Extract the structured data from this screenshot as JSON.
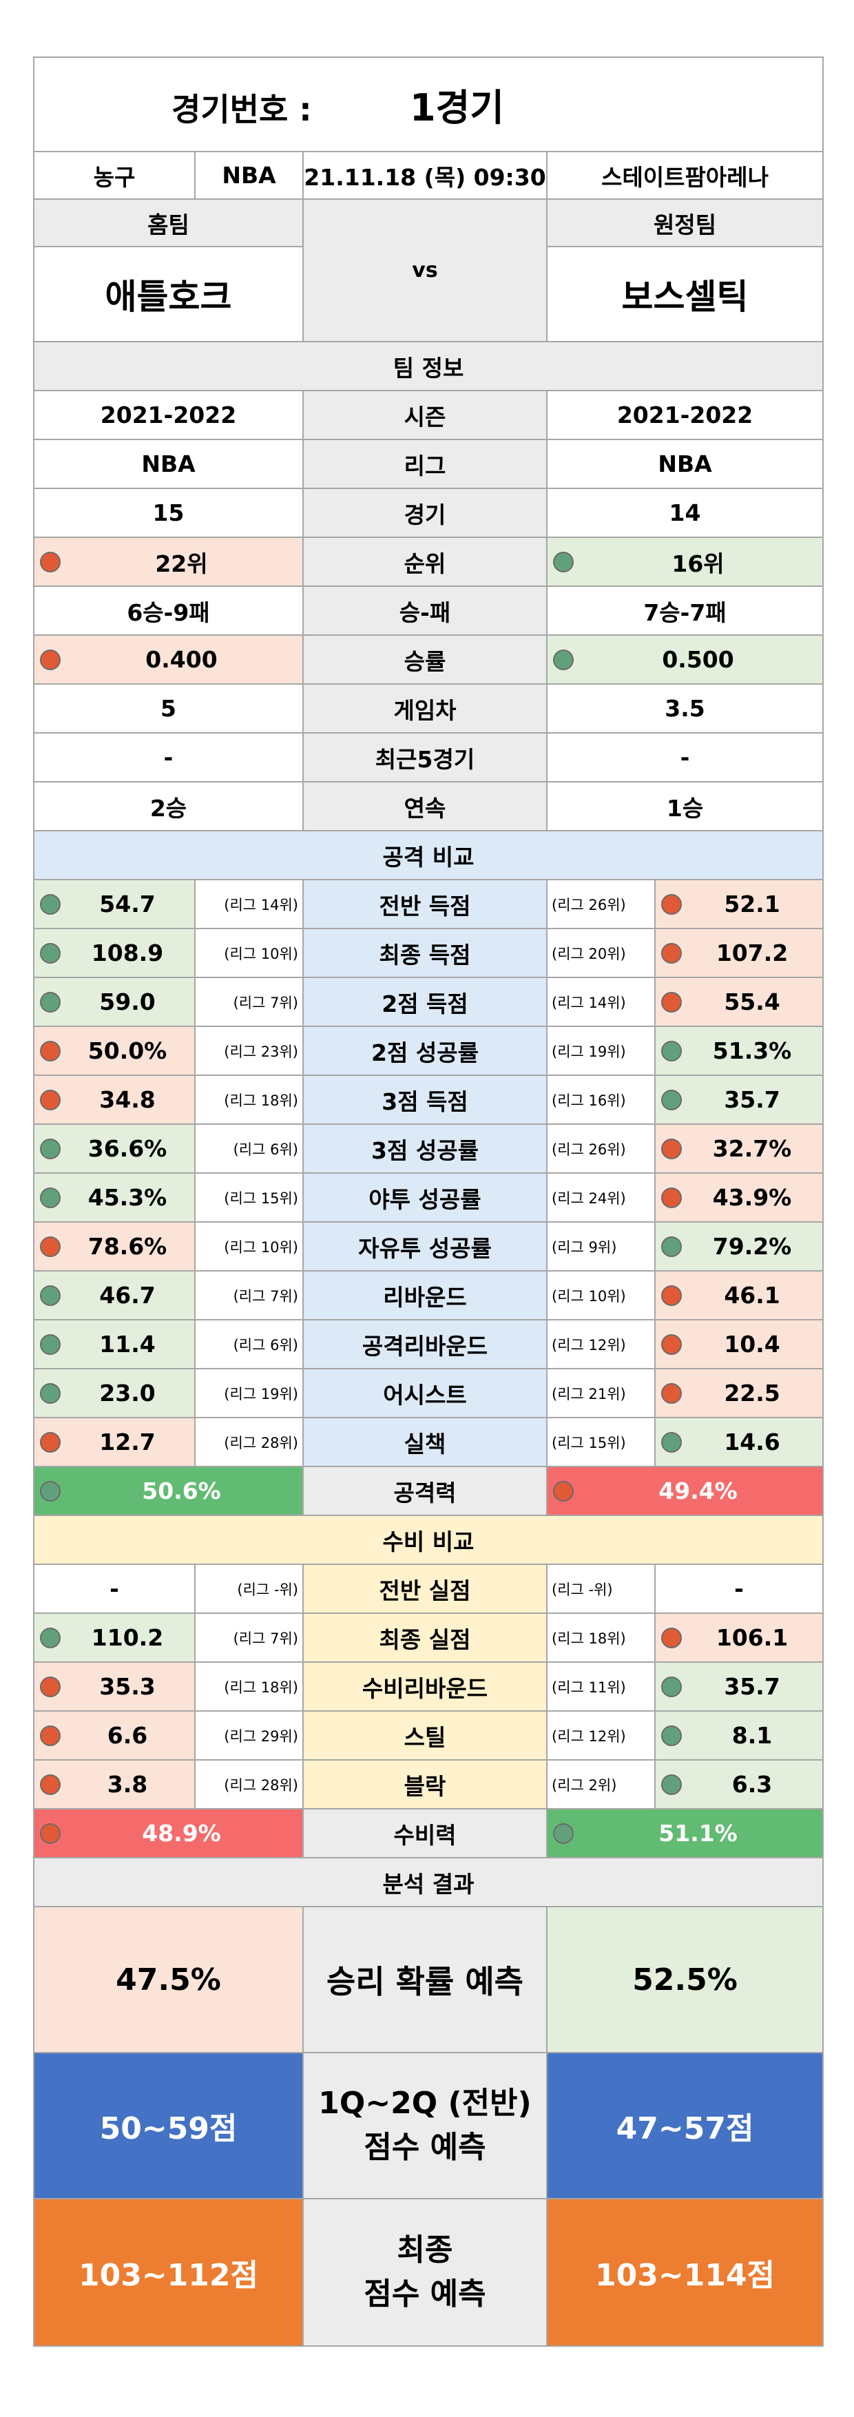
{
  "header": {
    "match_label": "경기번호 :",
    "match_value": "1경기"
  },
  "info": {
    "sport": "농구",
    "league": "NBA",
    "datetime": "21.11.18 (목) 09:30",
    "venue": "스테이트팜아레나"
  },
  "teams": {
    "home_label": "홈팀",
    "away_label": "원정팀",
    "vs": "vs",
    "home_name": "애틀호크",
    "away_name": "보스셀틱"
  },
  "team_info": {
    "title": "팀 정보",
    "rows": [
      {
        "label": "시즌",
        "home": "2021-2022",
        "away": "2021-2022"
      },
      {
        "label": "리그",
        "home": "NBA",
        "away": "NBA"
      },
      {
        "label": "경기",
        "home": "15",
        "away": "14"
      },
      {
        "label": "순위",
        "home": "22위",
        "away": "16위"
      },
      {
        "label": "승-패",
        "home": "6승-9패",
        "away": "7승-7패"
      },
      {
        "label": "승률",
        "home": "0.400",
        "away": "0.500"
      },
      {
        "label": "게임차",
        "home": "5",
        "away": "3.5"
      },
      {
        "label": "최근5경기",
        "home": "-",
        "away": "-"
      },
      {
        "label": "연속",
        "home": "2승",
        "away": "1승"
      }
    ]
  },
  "attack": {
    "title": "공격 비교",
    "rows": [
      {
        "label": "전반 득점",
        "home": "54.7",
        "home_rank": "(리그 14위)",
        "away": "52.1",
        "away_rank": "(리그 26위)"
      },
      {
        "label": "최종 득점",
        "home": "108.9",
        "home_rank": "(리그 10위)",
        "away": "107.2",
        "away_rank": "(리그 20위)"
      },
      {
        "label": "2점 득점",
        "home": "59.0",
        "home_rank": "(리그 7위)",
        "away": "55.4",
        "away_rank": "(리그 14위)"
      },
      {
        "label": "2점 성공률",
        "home": "50.0%",
        "home_rank": "(리그 23위)",
        "away": "51.3%",
        "away_rank": "(리그 19위)"
      },
      {
        "label": "3점 득점",
        "home": "34.8",
        "home_rank": "(리그 18위)",
        "away": "35.7",
        "away_rank": "(리그 16위)"
      },
      {
        "label": "3점 성공률",
        "home": "36.6%",
        "home_rank": "(리그 6위)",
        "away": "32.7%",
        "away_rank": "(리그 26위)"
      },
      {
        "label": "야투 성공률",
        "home": "45.3%",
        "home_rank": "(리그 15위)",
        "away": "43.9%",
        "away_rank": "(리그 24위)"
      },
      {
        "label": "자유투 성공률",
        "home": "78.6%",
        "home_rank": "(리그 10위)",
        "away": "79.2%",
        "away_rank": "(리그 9위)"
      },
      {
        "label": "리바운드",
        "home": "46.7",
        "home_rank": "(리그 7위)",
        "away": "46.1",
        "away_rank": "(리그 10위)"
      },
      {
        "label": "공격리바운드",
        "home": "11.4",
        "home_rank": "(리그 6위)",
        "away": "10.4",
        "away_rank": "(리그 12위)"
      },
      {
        "label": "어시스트",
        "home": "23.0",
        "home_rank": "(리그 19위)",
        "away": "22.5",
        "away_rank": "(리그 21위)"
      },
      {
        "label": "실책",
        "home": "12.7",
        "home_rank": "(리그 28위)",
        "away": "14.6",
        "away_rank": "(리그 15위)"
      }
    ],
    "summary": {
      "label": "공격력",
      "home": "50.6%",
      "away": "49.4%"
    }
  },
  "defense": {
    "title": "수비 비교",
    "rows": [
      {
        "label": "전반 실점",
        "home": "-",
        "home_rank": "(리그 -위)",
        "away": "-",
        "away_rank": "(리그 -위)"
      },
      {
        "label": "최종 실점",
        "home": "110.2",
        "home_rank": "(리그 7위)",
        "away": "106.1",
        "away_rank": "(리그 18위)"
      },
      {
        "label": "수비리바운드",
        "home": "35.3",
        "home_rank": "(리그 18위)",
        "away": "35.7",
        "away_rank": "(리그 11위)"
      },
      {
        "label": "스틸",
        "home": "6.6",
        "home_rank": "(리그 29위)",
        "away": "8.1",
        "away_rank": "(리그 12위)"
      },
      {
        "label": "블락",
        "home": "3.8",
        "home_rank": "(리그 28위)",
        "away": "6.3",
        "away_rank": "(리그 2위)"
      }
    ],
    "summary": {
      "label": "수비력",
      "home": "48.9%",
      "away": "51.1%"
    }
  },
  "analysis": {
    "title": "분석 결과",
    "win_label": "승리 확률 예측",
    "home_win": "47.5%",
    "away_win": "52.5%",
    "half_label_1": "1Q~2Q (전반)",
    "half_label_2": "점수 예측",
    "home_half": "50~59점",
    "away_half": "47~57점",
    "final_label_1": "최종",
    "final_label_2": "점수 예측",
    "home_final": "103~112점",
    "away_final": "103~114점"
  },
  "colors": {
    "good_dot": "#62a07c",
    "bad_dot": "#e05b35",
    "good_bg": "#e3efdc",
    "bad_bg": "#fbe3d8"
  }
}
